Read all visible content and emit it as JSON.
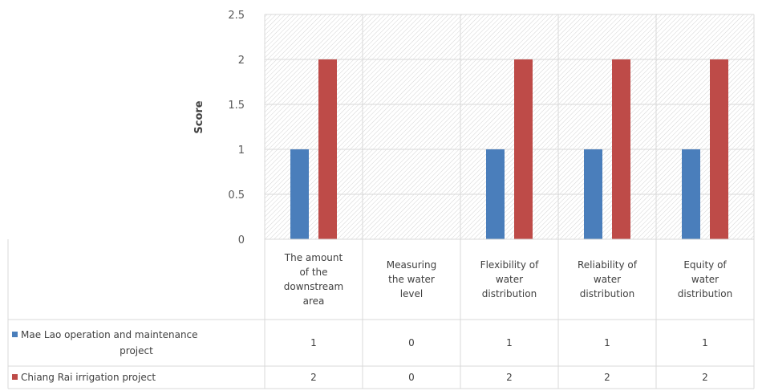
{
  "chart_data": {
    "type": "bar",
    "title": "",
    "xlabel": "",
    "ylabel": "Score",
    "ylim": [
      0,
      2.5
    ],
    "yticks": [
      "0",
      "0.5",
      "1",
      "1.5",
      "2",
      "2.5"
    ],
    "categories": [
      [
        "The amount",
        "of the",
        "downstream",
        "area"
      ],
      [
        "Measuring",
        "the water",
        "level"
      ],
      [
        "Flexibility of",
        "water",
        "distribution"
      ],
      [
        "Reliability of",
        "water",
        "distribution"
      ],
      [
        "Equity of",
        "water",
        "distribution"
      ]
    ],
    "series": [
      {
        "name_lines": [
          "Mae Lao operation and maintenance",
          "project"
        ],
        "color": "#4a7ebb",
        "values": [
          1,
          0,
          1,
          1,
          1
        ],
        "table_values": [
          "1",
          "0",
          "1",
          "1",
          "1"
        ]
      },
      {
        "name_lines": [
          "Chiang Rai irrigation project"
        ],
        "color": "#be4b48",
        "values": [
          2,
          0,
          2,
          2,
          2
        ],
        "table_values": [
          "2",
          "0",
          "2",
          "2",
          "2"
        ]
      }
    ],
    "grid": true,
    "legend": "data table below chart"
  }
}
